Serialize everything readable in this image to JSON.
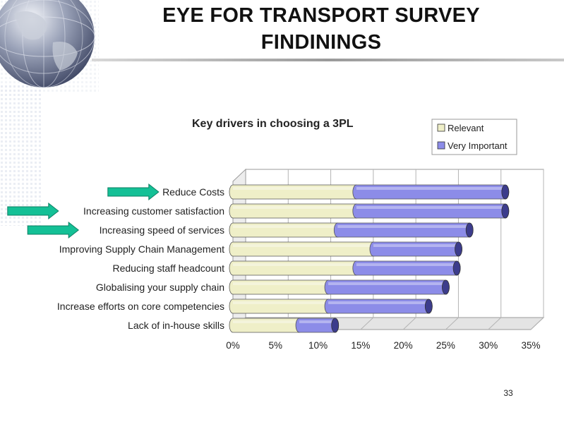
{
  "slide": {
    "title_line_1": "EYE FOR TRANSPORT SURVEY",
    "title_line_2": "FINDININGS",
    "page_number": "33"
  },
  "colors": {
    "relevant": "#efefc8",
    "very_important": "#8c8ce8",
    "arrow": "#14c096",
    "title_rule": "#a8a8a8"
  },
  "chart_data": {
    "type": "bar",
    "orientation": "horizontal",
    "stacked": true,
    "title": "Key drivers in choosing a 3PL",
    "categories": [
      "Reduce Costs",
      "Increasing customer satisfaction",
      "Increasing speed of services",
      "Improving Supply Chain Management",
      "Reducing staff headcount",
      "Globalising your supply chain",
      "Increase efforts on core competencies",
      "Lack of in-house skills"
    ],
    "series": [
      {
        "name": "Relevant",
        "values": [
          14.5,
          14.5,
          12.3,
          16.5,
          14.5,
          11.2,
          11.2,
          7.8
        ]
      },
      {
        "name": "Very Important",
        "values": [
          17.5,
          17.5,
          15.5,
          10.0,
          11.8,
          13.8,
          11.8,
          4.2
        ]
      }
    ],
    "x_ticks": [
      "0%",
      "5%",
      "10%",
      "15%",
      "20%",
      "25%",
      "30%",
      "35%"
    ],
    "xlim": [
      0,
      35
    ],
    "grid": true,
    "legend_position": "top-right",
    "highlighted_categories": [
      "Reduce Costs",
      "Increasing customer satisfaction",
      "Increasing speed of services"
    ]
  }
}
